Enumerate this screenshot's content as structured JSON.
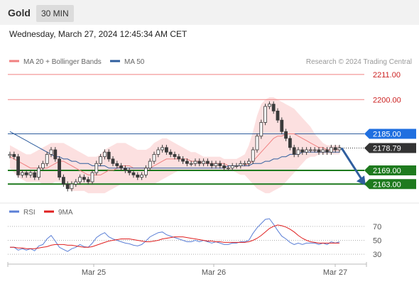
{
  "header": {
    "title": "Gold",
    "interval": "30 MIN"
  },
  "timestamp": "Wednesday, March 27, 2024 12:45:34 AM CET",
  "legend": [
    {
      "label": "MA 20 + Bollinger Bands",
      "color": "#f08080"
    },
    {
      "label": "MA 50",
      "color": "#2f5e9e"
    }
  ],
  "credit": "Research © 2024 Trading Central",
  "rsi_legend": [
    {
      "label": "RSI",
      "color": "#5b7fd6"
    },
    {
      "label": "9MA",
      "color": "#e02020"
    }
  ],
  "colors": {
    "resistance": "#f08080",
    "pivot": "#2f5e9e",
    "support": "#1e7a1e",
    "last": "#333333",
    "arrow": "#2f5e9e"
  },
  "chart_data": [
    {
      "type": "candlestick",
      "title": "",
      "ylim": [
        2155,
        2215
      ],
      "x_ticks": [
        "Mar 25",
        "Mar 26",
        "Mar 27"
      ],
      "levels": [
        {
          "value": 2211.0,
          "label": "2211.00",
          "kind": "resistance"
        },
        {
          "value": 2200.0,
          "label": "2200.00",
          "kind": "resistance"
        },
        {
          "value": 2185.0,
          "label": "2185.00",
          "kind": "pivot"
        },
        {
          "value": 2169.0,
          "label": "2169.00",
          "kind": "support"
        },
        {
          "value": 2163.0,
          "label": "2163.00",
          "kind": "support"
        }
      ],
      "last_price": {
        "value": 2178.79,
        "label": "2178.79"
      },
      "close": [
        2176,
        2175,
        2167,
        2168,
        2167,
        2168,
        2166,
        2170,
        2172,
        2176,
        2178,
        2174,
        2166,
        2163,
        2161,
        2163,
        2164,
        2166,
        2165,
        2164,
        2168,
        2172,
        2175,
        2177,
        2174,
        2172,
        2171,
        2170,
        2169,
        2168,
        2167,
        2166,
        2167,
        2170,
        2173,
        2176,
        2178,
        2179,
        2177,
        2176,
        2175,
        2174,
        2173,
        2172,
        2172,
        2173,
        2172,
        2173,
        2172,
        2171,
        2172,
        2171,
        2170,
        2170,
        2171,
        2171,
        2172,
        2172,
        2173,
        2178,
        2184,
        2190,
        2197,
        2198,
        2195,
        2191,
        2186,
        2183,
        2179,
        2176,
        2178,
        2177,
        2178,
        2178,
        2178,
        2177,
        2178,
        2177,
        2179,
        2178,
        2179
      ],
      "ma20": [
        2175,
        2174,
        2173,
        2172,
        2171,
        2170,
        2170,
        2170,
        2170,
        2170,
        2171,
        2172,
        2173,
        2173,
        2172,
        2171,
        2170,
        2169,
        2168,
        2167,
        2167,
        2167,
        2167,
        2168,
        2169,
        2169,
        2170,
        2171,
        2171,
        2171,
        2170,
        2170,
        2170,
        2170,
        2170,
        2171,
        2172,
        2173,
        2174,
        2174,
        2174,
        2174,
        2174,
        2174,
        2173,
        2173,
        2173,
        2172,
        2172,
        2172,
        2172,
        2172,
        2172,
        2171,
        2171,
        2171,
        2171,
        2171,
        2172,
        2173,
        2175,
        2177,
        2179,
        2181,
        2183,
        2184,
        2184,
        2185,
        2185,
        2185,
        2184,
        2183,
        2182,
        2181,
        2180,
        2179,
        2179,
        2178,
        2178,
        2178,
        2178
      ],
      "bb_upper": [
        2180,
        2179,
        2178,
        2177,
        2176,
        2176,
        2177,
        2178,
        2179,
        2180,
        2181,
        2181,
        2181,
        2181,
        2180,
        2179,
        2178,
        2177,
        2176,
        2175,
        2175,
        2175,
        2176,
        2178,
        2179,
        2180,
        2181,
        2181,
        2181,
        2180,
        2179,
        2178,
        2178,
        2178,
        2179,
        2181,
        2182,
        2183,
        2183,
        2182,
        2181,
        2180,
        2179,
        2178,
        2177,
        2177,
        2176,
        2175,
        2175,
        2175,
        2175,
        2175,
        2174,
        2174,
        2174,
        2174,
        2175,
        2176,
        2180,
        2186,
        2193,
        2198,
        2200,
        2201,
        2201,
        2200,
        2199,
        2198,
        2197,
        2196,
        2194,
        2192,
        2190,
        2188,
        2185,
        2183,
        2181,
        2180,
        2180,
        2180,
        2180
      ],
      "bb_lower": [
        2170,
        2168,
        2166,
        2165,
        2164,
        2164,
        2164,
        2164,
        2163,
        2163,
        2163,
        2164,
        2164,
        2163,
        2161,
        2160,
        2160,
        2160,
        2160,
        2159,
        2159,
        2159,
        2159,
        2159,
        2160,
        2161,
        2162,
        2163,
        2163,
        2163,
        2163,
        2163,
        2163,
        2163,
        2163,
        2163,
        2164,
        2165,
        2166,
        2167,
        2168,
        2169,
        2169,
        2169,
        2169,
        2169,
        2169,
        2169,
        2169,
        2169,
        2169,
        2169,
        2169,
        2169,
        2169,
        2168,
        2167,
        2167,
        2165,
        2163,
        2161,
        2160,
        2159,
        2159,
        2160,
        2161,
        2162,
        2164,
        2166,
        2168,
        2170,
        2172,
        2174,
        2175,
        2175,
        2176,
        2176,
        2176,
        2176,
        2176,
        2176
      ],
      "ma50": [
        2186,
        2185,
        2184,
        2183,
        2182,
        2181,
        2180,
        2179,
        2178,
        2177,
        2176,
        2175,
        2175,
        2174,
        2174,
        2173,
        2173,
        2172,
        2172,
        2172,
        2171,
        2171,
        2171,
        2171,
        2170,
        2170,
        2170,
        2170,
        2170,
        2170,
        2170,
        2170,
        2170,
        2170,
        2170,
        2170,
        2170,
        2170,
        2170,
        2170,
        2170,
        2170,
        2170,
        2170,
        2170,
        2170,
        2170,
        2170,
        2170,
        2170,
        2170,
        2170,
        2170,
        2171,
        2171,
        2171,
        2171,
        2171,
        2171,
        2172,
        2172,
        2172,
        2173,
        2173,
        2174,
        2174,
        2175,
        2175,
        2176,
        2176,
        2176,
        2177,
        2177,
        2177,
        2177,
        2177,
        2177,
        2177,
        2177,
        2177,
        2177
      ]
    },
    {
      "type": "line",
      "title": "",
      "ylim": [
        20,
        80
      ],
      "y_ticks": [
        70,
        50,
        30
      ],
      "x_ticks": [
        "Mar 25",
        "Mar 26",
        "Mar 27"
      ],
      "series": [
        {
          "name": "RSI",
          "values": [
            40,
            40,
            36,
            38,
            36,
            38,
            35,
            42,
            44,
            52,
            57,
            49,
            40,
            37,
            34,
            38,
            40,
            44,
            41,
            40,
            46,
            54,
            58,
            61,
            55,
            52,
            50,
            48,
            46,
            45,
            43,
            42,
            44,
            49,
            55,
            58,
            61,
            62,
            58,
            56,
            54,
            52,
            50,
            48,
            48,
            50,
            48,
            50,
            48,
            46,
            48,
            46,
            44,
            44,
            46,
            46,
            48,
            48,
            50,
            60,
            68,
            74,
            80,
            81,
            73,
            64,
            56,
            52,
            47,
            44,
            46,
            44,
            46,
            46,
            46,
            44,
            46,
            44,
            48,
            46,
            48
          ]
        },
        {
          "name": "9MA",
          "values": [
            40,
            40,
            39,
            39,
            38,
            38,
            38,
            39,
            40,
            41,
            43,
            44,
            44,
            44,
            43,
            43,
            42,
            41,
            40,
            40,
            41,
            43,
            45,
            47,
            49,
            50,
            51,
            52,
            52,
            52,
            51,
            50,
            49,
            48,
            48,
            49,
            50,
            52,
            53,
            54,
            55,
            55,
            55,
            54,
            53,
            52,
            51,
            50,
            49,
            49,
            48,
            48,
            47,
            47,
            47,
            47,
            47,
            47,
            48,
            50,
            53,
            57,
            62,
            67,
            70,
            72,
            71,
            69,
            66,
            62,
            57,
            53,
            50,
            48,
            47,
            46,
            46,
            46,
            46,
            46,
            46
          ]
        }
      ]
    }
  ]
}
